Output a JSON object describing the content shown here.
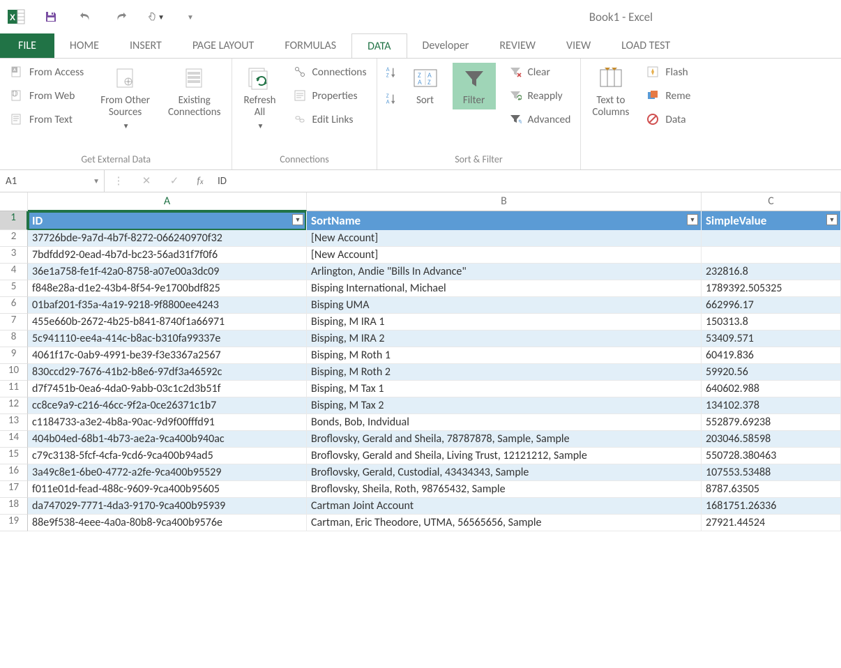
{
  "title": "Book1 - Excel",
  "tabs": [
    "FILE",
    "HOME",
    "INSERT",
    "PAGE LAYOUT",
    "FORMULAS",
    "DATA",
    "Developer",
    "REVIEW",
    "VIEW",
    "LOAD TEST"
  ],
  "active_tab": "DATA",
  "ribbon": {
    "groups": {
      "get_external": {
        "label": "Get External Data",
        "from_access": "From Access",
        "from_web": "From Web",
        "from_text": "From Text",
        "from_other": "From Other\nSources",
        "existing": "Existing\nConnections"
      },
      "connections": {
        "label": "Connections",
        "refresh": "Refresh\nAll",
        "conns": "Connections",
        "props": "Properties",
        "edit": "Edit Links"
      },
      "sort_filter": {
        "label": "Sort & Filter",
        "sort": "Sort",
        "filter": "Filter",
        "clear": "Clear",
        "reapply": "Reapply",
        "advanced": "Advanced"
      },
      "data_tools": {
        "text_to_cols": "Text to\nColumns",
        "flash": "Flash",
        "remove": "Reme",
        "data": "Data"
      }
    }
  },
  "name_box": "A1",
  "formula_value": "ID",
  "columns": [
    "A",
    "B",
    "C"
  ],
  "headers": {
    "A": "ID",
    "B": "SortName",
    "C": "SimpleValue"
  },
  "rows": [
    {
      "n": 2,
      "A": "37726bde-9a7d-4b7f-8272-066240970f32",
      "B": "[New Account]",
      "C": ""
    },
    {
      "n": 3,
      "A": "7bdfdd92-0ead-4b7d-bc23-56ad31f7f0f6",
      "B": "[New Account]",
      "C": ""
    },
    {
      "n": 4,
      "A": "36e1a758-fe1f-42a0-8758-a07e00a3dc09",
      "B": "Arlington, Andie \"Bills In Advance\"",
      "C": "232816.8"
    },
    {
      "n": 5,
      "A": "f848e28a-d1e2-43b4-8f54-9e1700bdf825",
      "B": "Bisping International, Michael",
      "C": "1789392.505325"
    },
    {
      "n": 6,
      "A": "01baf201-f35a-4a19-9218-9f8800ee4243",
      "B": "Bisping UMA",
      "C": "662996.17"
    },
    {
      "n": 7,
      "A": "455e660b-2672-4b25-b841-8740f1a66971",
      "B": "Bisping, M IRA 1",
      "C": "150313.8"
    },
    {
      "n": 8,
      "A": "5c941110-ee4a-414c-b8ac-b310fa99337e",
      "B": "Bisping, M IRA 2",
      "C": "53409.571"
    },
    {
      "n": 9,
      "A": "4061f17c-0ab9-4991-be39-f3e3367a2567",
      "B": "Bisping, M Roth 1",
      "C": "60419.836"
    },
    {
      "n": 10,
      "A": "830ccd29-7676-41b2-b8e6-97df3a46592c",
      "B": "Bisping, M Roth 2",
      "C": "59920.56"
    },
    {
      "n": 11,
      "A": "d7f7451b-0ea6-4da0-9abb-03c1c2d3b51f",
      "B": "Bisping, M Tax 1",
      "C": "640602.988"
    },
    {
      "n": 12,
      "A": "cc8ce9a9-c216-46cc-9f2a-0ce26371c1b7",
      "B": "Bisping, M Tax 2",
      "C": "134102.378"
    },
    {
      "n": 13,
      "A": "c1184733-a3e2-4b8a-90ac-9d9f00fffd91",
      "B": "Bonds, Bob, Indvidual",
      "C": "552879.69238"
    },
    {
      "n": 14,
      "A": "404b04ed-68b1-4b73-ae2a-9ca400b940ac",
      "B": "Broflovsky, Gerald and Sheila, 78787878, Sample, Sample",
      "C": "203046.58598"
    },
    {
      "n": 15,
      "A": "c79c3138-5fcf-4cfa-9cd6-9ca400b94ad5",
      "B": "Broflovsky, Gerald and Sheila, Living Trust, 12121212, Sample",
      "C": "550728.380463"
    },
    {
      "n": 16,
      "A": "3a49c8e1-6be0-4772-a2fe-9ca400b95529",
      "B": "Broflovsky, Gerald, Custodial, 43434343, Sample",
      "C": "107553.53488"
    },
    {
      "n": 17,
      "A": "f011e01d-fead-488c-9609-9ca400b95605",
      "B": "Broflovsky, Sheila, Roth, 98765432, Sample",
      "C": "8787.63505"
    },
    {
      "n": 18,
      "A": "da747029-7771-4da3-9170-9ca400b95939",
      "B": "Cartman Joint Account",
      "C": "1681751.26336"
    },
    {
      "n": 19,
      "A": "88e9f538-4eee-4a0a-80b8-9ca400b9576e",
      "B": "Cartman, Eric Theodore, UTMA, 56565656, Sample",
      "C": "27921.44524"
    }
  ],
  "colors": {
    "accent": "#217346",
    "table_header": "#5b9bd5",
    "band": "#e2eff8",
    "filter_highlight": "#9fd5b7"
  }
}
